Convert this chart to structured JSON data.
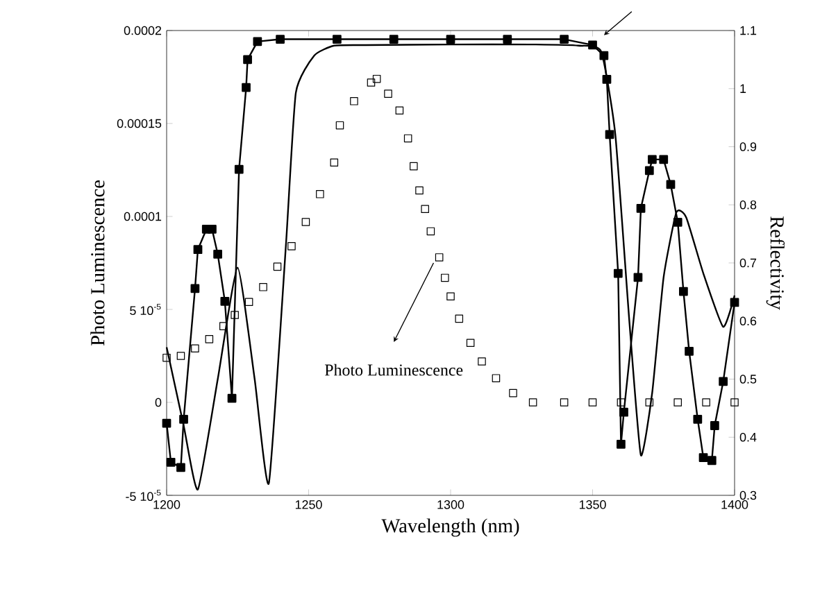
{
  "chart_data": {
    "type": "line",
    "xlabel": "Wavelength (nm)",
    "ylabel": "Photo Luminescence",
    "y2label": "Reflectivity",
    "xlim": [
      1200,
      1400
    ],
    "xticks": [
      1200,
      1250,
      1300,
      1350,
      1400
    ],
    "ylim": [
      -5e-05,
      0.0002
    ],
    "yticks": [
      {
        "value": -5e-05,
        "label": "-5 10$^{-5}$"
      },
      0,
      {
        "value": 5e-05,
        "label": "5 10$^{-5}$"
      },
      0.0001,
      0.00015,
      0.0002
    ],
    "y2lim": [
      0.3,
      1.1
    ],
    "y2ticks": [
      0.3,
      0.4,
      0.5,
      0.6,
      0.7,
      0.8,
      0.9,
      1,
      1.1
    ],
    "annotations": [
      "Photo Luminescence"
    ],
    "series": [
      {
        "type": "scatter",
        "marker": "square",
        "color": "#000000",
        "x": [
          1200,
          1205,
          1210,
          1215,
          1220,
          1224,
          1229,
          1234,
          1239,
          1244,
          1249,
          1254,
          1259,
          1261,
          1266,
          1272,
          1274,
          1278,
          1282,
          1285,
          1287,
          1289,
          1291,
          1293,
          1296,
          1298,
          1300,
          1303,
          1307,
          1311,
          1316,
          1322,
          1329,
          1340,
          1350,
          1360,
          1370,
          1380,
          1390,
          1400
        ],
        "values": [
          2.4e-05,
          2.5e-05,
          2.9e-05,
          3.4e-05,
          4.1e-05,
          4.7e-05,
          5.4e-05,
          6.2e-05,
          7.3e-05,
          8.4e-05,
          9.7e-05,
          0.000112,
          0.000129,
          0.000149,
          0.000162,
          0.000172,
          0.000174,
          0.000166,
          0.000157,
          0.000142,
          0.000127,
          0.000114,
          0.000104,
          9.2e-05,
          7.8e-05,
          6.7e-05,
          5.7e-05,
          4.5e-05,
          3.2e-05,
          2.2e-05,
          1.3e-05,
          5e-06,
          0,
          0,
          0,
          0,
          0,
          0,
          0,
          0
        ]
      },
      {
        "marker": "square",
        "axis": "y2",
        "color": "#000000",
        "x": [
          1200,
          1201.5,
          1205,
          1206,
          1210,
          1211,
          1214,
          1216,
          1218,
          1220.5,
          1223,
          1225.5,
          1228,
          1228.5,
          1232,
          1240,
          1260,
          1280,
          1300,
          1320,
          1340,
          1350,
          1354,
          1355,
          1356,
          1359,
          1360,
          1361,
          1366,
          1367,
          1370,
          1371,
          1375,
          1377.5,
          1380,
          1382,
          1384,
          1387,
          1389,
          1392,
          1393,
          1396,
          1400
        ],
        "values": [
          0.424,
          0.357,
          0.348,
          0.431,
          0.656,
          0.723,
          0.758,
          0.758,
          0.715,
          0.634,
          0.467,
          0.861,
          1.002,
          1.05,
          1.081,
          1.085,
          1.085,
          1.085,
          1.085,
          1.085,
          1.085,
          1.075,
          1.057,
          1.016,
          0.921,
          0.682,
          0.388,
          0.443,
          0.675,
          0.794,
          0.859,
          0.878,
          0.878,
          0.835,
          0.77,
          0.651,
          0.548,
          0.431,
          0.365,
          0.36,
          0.42,
          0.496,
          0.632
        ]
      },
      {
        "axis": "y2",
        "color": "#000000",
        "x": [
          1200,
          1206,
          1211,
          1218,
          1225,
          1231,
          1236,
          1242,
          1245.5,
          1252,
          1259,
          1270,
          1300,
          1330,
          1345,
          1353,
          1358,
          1363,
          1367,
          1371,
          1375,
          1379.5,
          1383,
          1389,
          1396,
          1400
        ],
        "values": [
          0.555,
          0.42,
          0.31,
          0.5,
          0.692,
          0.5,
          0.321,
          0.73,
          0.993,
          1.057,
          1.074,
          1.075,
          1.076,
          1.076,
          1.074,
          1.064,
          0.921,
          0.596,
          0.369,
          0.477,
          0.675,
          0.787,
          0.778,
          0.682,
          0.59,
          0.644
        ]
      }
    ]
  }
}
